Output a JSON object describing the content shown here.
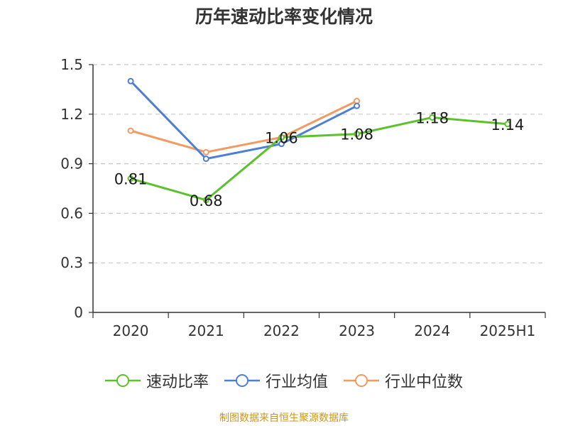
{
  "chart_data": {
    "type": "line",
    "title": "历年速动比率变化情况",
    "categories": [
      "2020",
      "2021",
      "2022",
      "2023",
      "2024",
      "2025H1"
    ],
    "ylim": [
      0,
      1.5
    ],
    "yticks": [
      "0",
      "0.3",
      "0.6",
      "0.9",
      "1.2",
      "1.5"
    ],
    "grid": true,
    "legend_position": "bottom",
    "series": [
      {
        "name": "速动比率",
        "color": "#5cc12b",
        "values": [
          0.81,
          0.68,
          1.06,
          1.08,
          1.18,
          1.14
        ],
        "labels": [
          "0.81",
          "0.68",
          "1.06",
          "1.08",
          "1.18",
          "1.14"
        ]
      },
      {
        "name": "行业均值",
        "color": "#4d7fd8",
        "values": [
          1.4,
          0.93,
          1.02,
          1.25,
          null,
          null
        ]
      },
      {
        "name": "行业中位数",
        "color": "#f49a61",
        "values": [
          1.1,
          0.97,
          1.06,
          1.28,
          null,
          null
        ]
      }
    ]
  },
  "footer": {
    "source": "制图数据来自恒生聚源数据库"
  }
}
